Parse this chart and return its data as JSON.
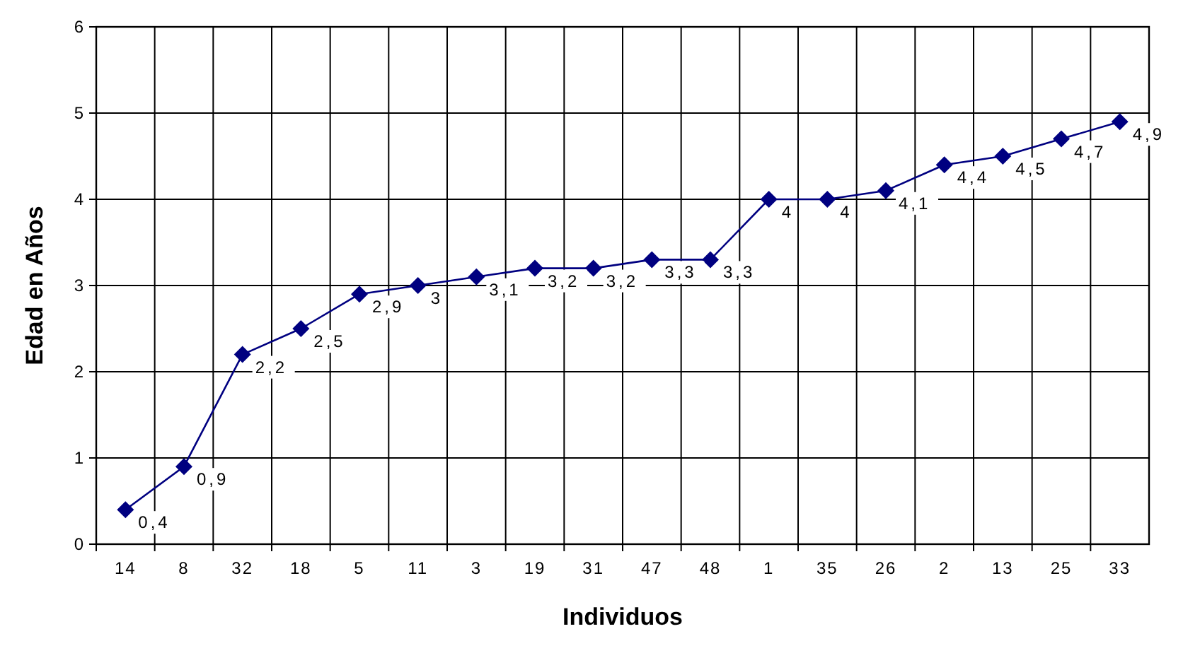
{
  "chart_data": {
    "type": "line",
    "xlabel": "Individuos",
    "ylabel": "Edad en Años",
    "categories": [
      "14",
      "8",
      "32",
      "18",
      "5",
      "11",
      "3",
      "19",
      "31",
      "47",
      "48",
      "1",
      "35",
      "26",
      "2",
      "13",
      "25",
      "33"
    ],
    "series": [
      {
        "color": "#000080",
        "values": [
          0.4,
          0.9,
          2.2,
          2.5,
          2.9,
          3,
          3.1,
          3.2,
          3.2,
          3.3,
          3.3,
          4,
          4,
          4.1,
          4.4,
          4.5,
          4.7,
          4.9
        ],
        "value_labels": [
          "0,4",
          "0,9",
          "2,2",
          "2,5",
          "2,9",
          "3",
          "3,1",
          "3,2",
          "3,2",
          "3,3",
          "3,3",
          "4",
          "4",
          "4,1",
          "4,4",
          "4,5",
          "4,7",
          "4,9"
        ]
      }
    ],
    "ylim": [
      0,
      6
    ],
    "yticks": [
      0,
      1,
      2,
      3,
      4,
      5,
      6
    ],
    "grid": true,
    "marker": "diamond",
    "line_style": "solid"
  }
}
